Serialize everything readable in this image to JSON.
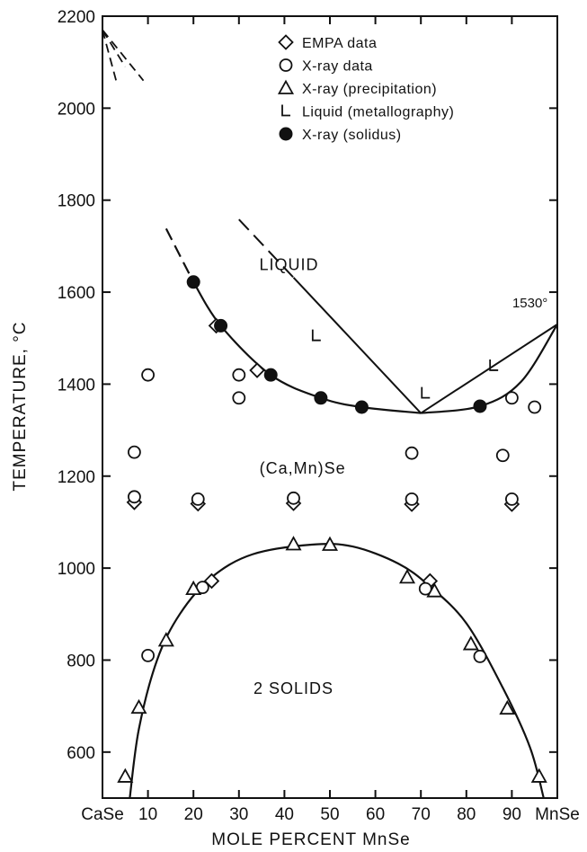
{
  "chart_data": {
    "type": "scatter",
    "xlabel": "MOLE PERCENT MnSe",
    "ylabel": "TEMPERATURE, °C",
    "xlim": [
      0,
      100
    ],
    "ylim": [
      500,
      2200
    ],
    "x_ticks": [
      {
        "value": 0,
        "label": "CaSe"
      },
      {
        "value": 10,
        "label": "10"
      },
      {
        "value": 20,
        "label": "20"
      },
      {
        "value": 30,
        "label": "30"
      },
      {
        "value": 40,
        "label": "40"
      },
      {
        "value": 50,
        "label": "50"
      },
      {
        "value": 60,
        "label": "60"
      },
      {
        "value": 70,
        "label": "70"
      },
      {
        "value": 80,
        "label": "80"
      },
      {
        "value": 90,
        "label": "90"
      },
      {
        "value": 100,
        "label": "MnSe"
      }
    ],
    "y_ticks": [
      600,
      800,
      1000,
      1200,
      1400,
      1600,
      1800,
      2000,
      2200
    ],
    "grid": false,
    "legend_position": "top-center",
    "series": [
      {
        "name": "EMPA data",
        "marker": "diamond",
        "points": [
          [
            7,
            1143
          ],
          [
            21,
            1140
          ],
          [
            42,
            1141
          ],
          [
            68,
            1139
          ],
          [
            90,
            1139
          ],
          [
            24,
            972
          ],
          [
            72,
            972
          ],
          [
            25,
            1527
          ],
          [
            34,
            1430
          ]
        ]
      },
      {
        "name": "X-ray data",
        "marker": "circle-open",
        "points": [
          [
            7,
            1155
          ],
          [
            21,
            1150
          ],
          [
            42,
            1152
          ],
          [
            68,
            1150
          ],
          [
            90,
            1150
          ],
          [
            7,
            1252
          ],
          [
            10,
            1420
          ],
          [
            30,
            1420
          ],
          [
            30,
            1370
          ],
          [
            68,
            1250
          ],
          [
            90,
            1370
          ],
          [
            95,
            1350
          ],
          [
            88,
            1245
          ],
          [
            10,
            810
          ],
          [
            22,
            958
          ],
          [
            71,
            955
          ],
          [
            83,
            808
          ]
        ]
      },
      {
        "name": "X-ray (precipitation)",
        "marker": "triangle",
        "points": [
          [
            5,
            547
          ],
          [
            8,
            697
          ],
          [
            14,
            843
          ],
          [
            20,
            955
          ],
          [
            42,
            1052
          ],
          [
            50,
            1051
          ],
          [
            67,
            980
          ],
          [
            73,
            950
          ],
          [
            81,
            835
          ],
          [
            89,
            695
          ],
          [
            96,
            547
          ]
        ]
      },
      {
        "name": "Liquid (metallography)",
        "marker": "L",
        "points": [
          [
            47,
            1505
          ],
          [
            71,
            1380
          ],
          [
            86,
            1440
          ]
        ]
      },
      {
        "name": "X-ray (solidus)",
        "marker": "circle-filled",
        "points": [
          [
            20,
            1622
          ],
          [
            26,
            1527
          ],
          [
            37,
            1420
          ],
          [
            48,
            1370
          ],
          [
            57,
            1350
          ],
          [
            83,
            1352
          ]
        ]
      }
    ],
    "curves": {
      "liquidus_left": [
        [
          30,
          1758
        ],
        [
          70,
          1337
        ]
      ],
      "liquidus_right": [
        [
          70,
          1337
        ],
        [
          100,
          1530
        ]
      ],
      "solidus_left": [
        [
          14,
          1738
        ],
        [
          20,
          1622
        ],
        [
          26,
          1527
        ],
        [
          37,
          1420
        ],
        [
          48,
          1370
        ],
        [
          57,
          1350
        ],
        [
          70,
          1337
        ]
      ],
      "solidus_right": [
        [
          70,
          1337
        ],
        [
          83,
          1352
        ],
        [
          92,
          1405
        ],
        [
          100,
          1530
        ]
      ],
      "miscibility_gap": [
        [
          6,
          500
        ],
        [
          8,
          650
        ],
        [
          12,
          800
        ],
        [
          17,
          900
        ],
        [
          24,
          980
        ],
        [
          33,
          1030
        ],
        [
          46,
          1051
        ],
        [
          55,
          1047
        ],
        [
          65,
          1010
        ],
        [
          72,
          960
        ],
        [
          80,
          880
        ],
        [
          88,
          740
        ],
        [
          94,
          610
        ],
        [
          97,
          500
        ]
      ],
      "melting_dashes": [
        [
          [
            0,
            2170
          ],
          [
            3,
            2060
          ]
        ],
        [
          [
            0,
            2170
          ],
          [
            5,
            2090
          ]
        ],
        [
          [
            0,
            2170
          ],
          [
            9,
            2060
          ]
        ]
      ]
    },
    "region_labels": [
      {
        "text": "LIQUID",
        "x": 41,
        "y": 1648
      },
      {
        "text": "(Ca,Mn)Se",
        "x": 44,
        "y": 1205
      },
      {
        "text": "2 SOLIDS",
        "x": 42,
        "y": 727
      }
    ],
    "annotations": [
      {
        "text": "1530°",
        "x": 94,
        "y": 1567
      }
    ]
  }
}
